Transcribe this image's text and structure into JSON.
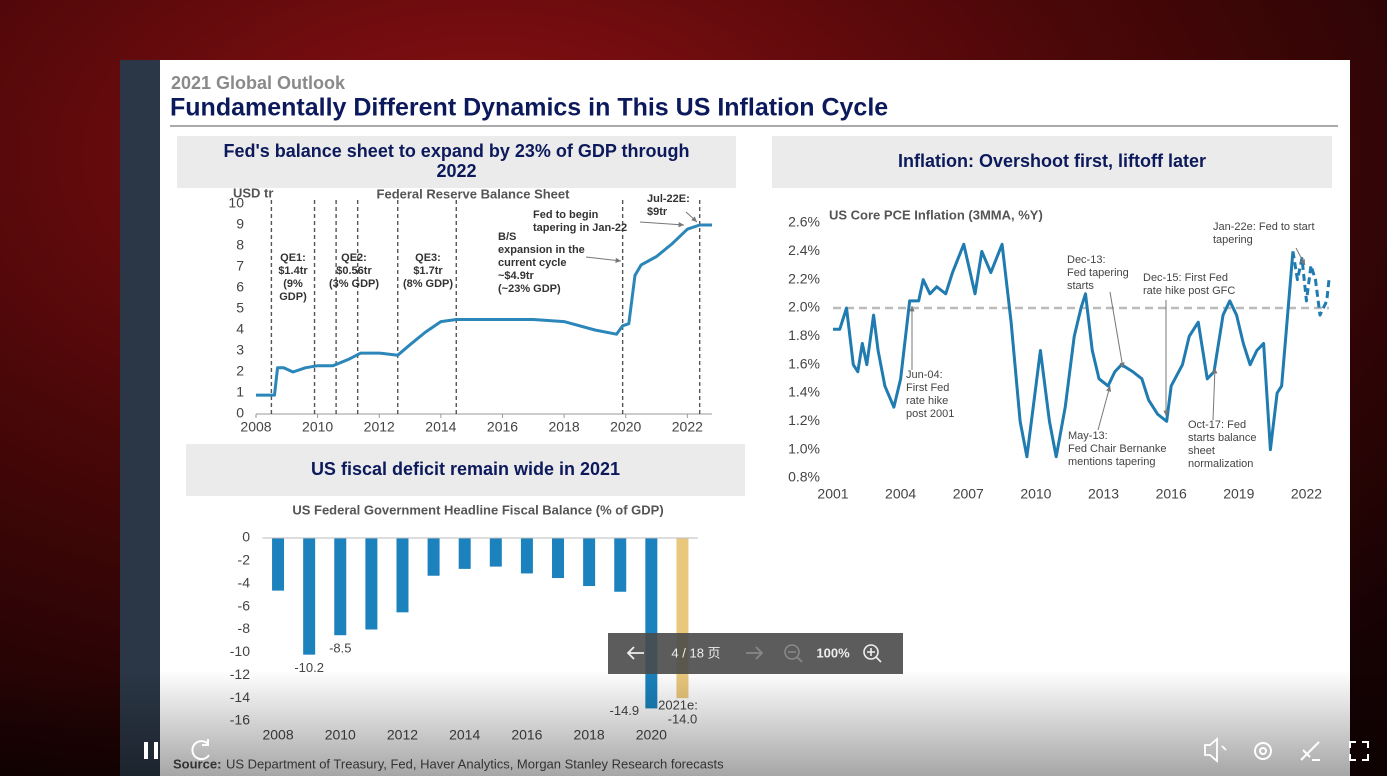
{
  "header": {
    "kicker": "2021 Global Outlook",
    "title": "Fundamentally Different Dynamics in This US Inflation Cycle"
  },
  "chart_data": [
    {
      "type": "line",
      "heading": [
        "Fed's balance sheet to expand by 23% of GDP through",
        "2022"
      ],
      "title": "Federal Reserve Balance Sheet",
      "y_label": "USD tr",
      "x": [
        2008,
        2008.6,
        2008.7,
        2008.9,
        2009.2,
        2009.6,
        2010,
        2010.5,
        2011,
        2011.4,
        2012,
        2012.6,
        2013,
        2013.5,
        2014,
        2014.5,
        2015,
        2016,
        2017,
        2018,
        2019,
        2019.7,
        2019.9,
        2020.1,
        2020.3,
        2020.5,
        2021,
        2021.5,
        2022,
        2022.4,
        2022.8
      ],
      "series": [
        {
          "color": "#2b86b9",
          "values": [
            0.9,
            0.9,
            2.2,
            2.2,
            2.0,
            2.2,
            2.3,
            2.3,
            2.6,
            2.9,
            2.9,
            2.8,
            3.3,
            3.9,
            4.4,
            4.5,
            4.5,
            4.5,
            4.5,
            4.4,
            4.0,
            3.8,
            4.2,
            4.3,
            6.6,
            7.1,
            7.5,
            8.1,
            8.8,
            9.0,
            9.0
          ]
        }
      ],
      "events": [
        2008.5,
        2009.9,
        2010.6,
        2011.3,
        2012.6,
        2014.5,
        2019.9,
        2022.4
      ],
      "event_color": "#555555",
      "xlim": [
        2008,
        2022.8
      ],
      "xticks": [
        2008,
        2010,
        2012,
        2014,
        2016,
        2018,
        2020,
        2022
      ],
      "ylim": [
        0,
        10
      ],
      "yticks": [
        0,
        1,
        2,
        3,
        4,
        5,
        6,
        7,
        8,
        9,
        10
      ],
      "annotations": [
        [
          "QE1:",
          "$1.4tr",
          "(9%",
          "GDP)"
        ],
        [
          "QE2:",
          "$0.56tr",
          "(3% GDP)"
        ],
        [
          "QE3:",
          "$1.7tr",
          "(8% GDP)"
        ],
        [
          "B/S",
          "expansion in the",
          "current cycle",
          "~$4.9tr",
          "(~23% GDP)"
        ],
        [
          "Fed to begin",
          "tapering in Jan-22"
        ],
        [
          "Jul-22E:",
          "$9tr"
        ]
      ]
    },
    {
      "type": "bar",
      "heading": [
        "US fiscal deficit remain wide in 2021"
      ],
      "title": "US Federal Government Headline Fiscal Balance (% of GDP)",
      "x": [
        2008,
        2009,
        2010,
        2011,
        2012,
        2013,
        2014,
        2015,
        2016,
        2017,
        2018,
        2019,
        2020,
        2021
      ],
      "values": [
        -4.6,
        -10.2,
        -8.5,
        -8.0,
        -6.5,
        -3.3,
        -2.7,
        -2.5,
        -3.1,
        -3.5,
        -4.2,
        -4.7,
        -14.9,
        -14.0
      ],
      "value_labels": [
        null,
        "-10.2",
        "-8.5",
        null,
        null,
        null,
        null,
        null,
        null,
        null,
        null,
        null,
        "-14.9",
        "-14.0"
      ],
      "colors": [
        "#1b82bd",
        "#1b82bd",
        "#1b82bd",
        "#1b82bd",
        "#1b82bd",
        "#1b82bd",
        "#1b82bd",
        "#1b82bd",
        "#1b82bd",
        "#1b82bd",
        "#1b82bd",
        "#1b82bd",
        "#1b82bd",
        "#e9c77d"
      ],
      "xlim": [
        2007.5,
        2021.5
      ],
      "xticks": [
        2008,
        2010,
        2012,
        2014,
        2016,
        2018,
        2020
      ],
      "ylim": [
        -16,
        0
      ],
      "yticks": [
        0,
        -2,
        -4,
        -6,
        -8,
        -10,
        -12,
        -14,
        -16
      ],
      "annotations": [
        "2021e:"
      ]
    },
    {
      "type": "line",
      "heading": [
        "Inflation: Overshoot first, liftoff later"
      ],
      "title": "US Core PCE Inflation (3MMA, %Y)",
      "series": [
        {
          "color": "#1f7bb0",
          "dashed": false,
          "x": [
            2001,
            2001.3,
            2001.6,
            2001.9,
            2002.1,
            2002.3,
            2002.5,
            2002.8,
            2003.0,
            2003.3,
            2003.7,
            2004.0,
            2004.4,
            2004.8,
            2005.0,
            2005.3,
            2005.6,
            2006.0,
            2006.3,
            2006.8,
            2007.3,
            2007.6,
            2008.0,
            2008.5,
            2008.9,
            2009.3,
            2009.6,
            2010.2,
            2010.6,
            2010.9,
            2011.3,
            2011.7,
            2012.0,
            2012.2,
            2012.5,
            2012.8,
            2013.2,
            2013.5,
            2013.8,
            2014.3,
            2014.7,
            2015.0,
            2015.4,
            2015.8,
            2016.0,
            2016.5,
            2016.8,
            2017.2,
            2017.6,
            2017.9,
            2018.3,
            2018.6,
            2018.9,
            2019.2,
            2019.5,
            2019.8,
            2020.1,
            2020.4,
            2020.7,
            2020.9,
            2021.4
          ],
          "values": [
            1.85,
            1.85,
            2.0,
            1.6,
            1.55,
            1.75,
            1.6,
            1.95,
            1.7,
            1.45,
            1.3,
            1.5,
            2.05,
            2.05,
            2.2,
            2.1,
            2.15,
            2.1,
            2.25,
            2.45,
            2.1,
            2.4,
            2.25,
            2.45,
            1.9,
            1.2,
            0.95,
            1.7,
            1.2,
            0.95,
            1.3,
            1.8,
            2.0,
            2.1,
            1.7,
            1.5,
            1.45,
            1.55,
            1.6,
            1.55,
            1.5,
            1.35,
            1.25,
            1.2,
            1.45,
            1.6,
            1.8,
            1.9,
            1.5,
            1.55,
            1.95,
            2.05,
            1.95,
            1.75,
            1.6,
            1.7,
            1.75,
            1.0,
            1.4,
            1.45,
            2.4
          ]
        },
        {
          "color": "#1f7bb0",
          "dashed": true,
          "x": [
            2021.4,
            2021.6,
            2021.8,
            2022.0,
            2022.2,
            2022.4,
            2022.6,
            2022.9,
            2023.0
          ],
          "values": [
            2.4,
            2.2,
            2.35,
            2.05,
            2.3,
            2.2,
            1.95,
            2.05,
            2.2
          ]
        }
      ],
      "reference_line": 2.0,
      "reference_color": "#bbbbbb",
      "xlim": [
        2001,
        2023
      ],
      "xticks": [
        2001,
        2004,
        2007,
        2010,
        2013,
        2016,
        2019,
        2022
      ],
      "ylim": [
        0.8,
        2.6
      ],
      "yticks": [
        {
          "value": 0.8,
          "label": "0.8%"
        },
        {
          "value": 1.0,
          "label": "1.0%"
        },
        {
          "value": 1.2,
          "label": "1.2%"
        },
        {
          "value": 1.4,
          "label": "1.4%"
        },
        {
          "value": 1.6,
          "label": "1.6%"
        },
        {
          "value": 1.8,
          "label": "1.8%"
        },
        {
          "value": 2.0,
          "label": "2.0%"
        },
        {
          "value": 2.2,
          "label": "2.2%"
        },
        {
          "value": 2.4,
          "label": "2.4%"
        },
        {
          "value": 2.6,
          "label": "2.6%"
        }
      ],
      "annotations": [
        [
          "Jun-04:",
          "First Fed",
          "rate hike",
          "post 2001"
        ],
        [
          "Dec-13:",
          "Fed tapering",
          "starts"
        ],
        [
          "Dec-15: First Fed",
          "rate hike post GFC"
        ],
        [
          "Jan-22e: Fed to start",
          "tapering"
        ],
        [
          "May-13:",
          "Fed Chair Bernanke",
          "mentions tapering"
        ],
        [
          "Oct-17: Fed",
          "starts balance",
          "sheet",
          "normalization"
        ]
      ]
    }
  ],
  "source": {
    "label": "Source:",
    "text": "US Department of Treasury, Fed, Haver Analytics, Morgan Stanley Research forecasts"
  },
  "player": {
    "page_indicator": "4 / 18 页",
    "zoom": "100%"
  }
}
